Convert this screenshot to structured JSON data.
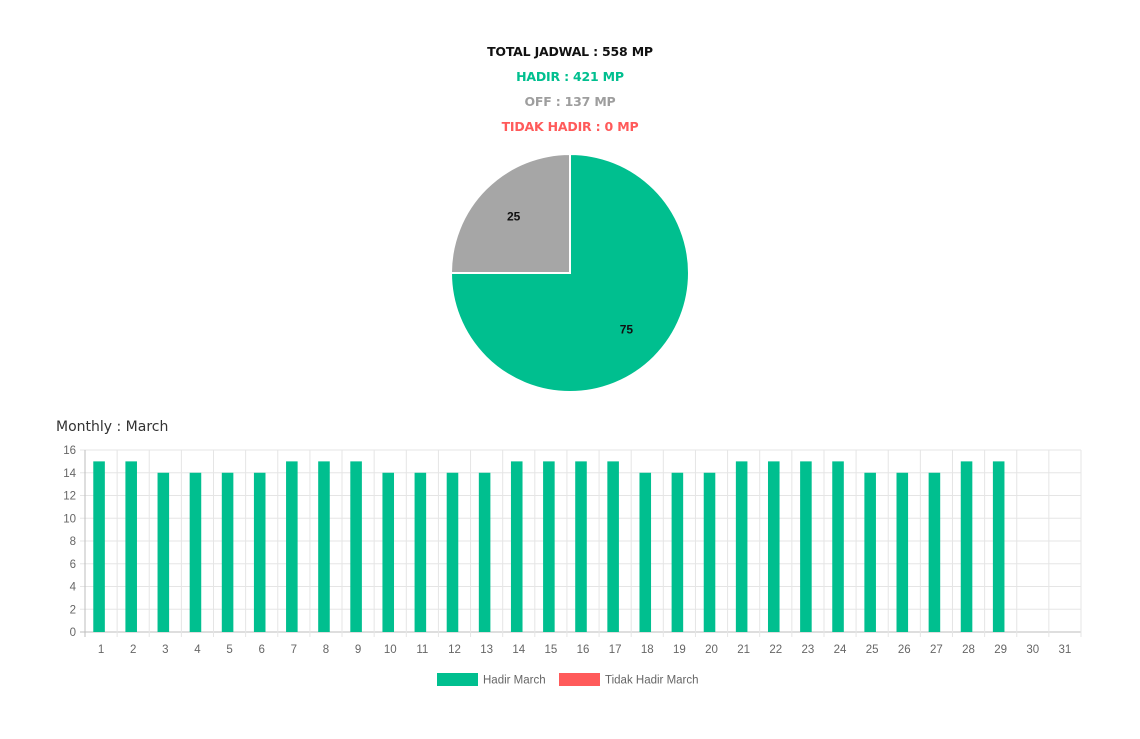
{
  "summary": {
    "total": "TOTAL JADWAL : 558 MP",
    "hadir": "HADIR : 421 MP",
    "off": "OFF : 137 MP",
    "tidak_hadir": "TIDAK HADIR : 0 MP"
  },
  "colors": {
    "hadir": "#00bf8f",
    "off": "#a6a6a6",
    "tidak_hadir": "#ff5a5a",
    "grid": "#e5e5e5",
    "axis_text": "#666666"
  },
  "chart_data": [
    {
      "type": "pie",
      "title": "",
      "slices": [
        {
          "label": "",
          "value": 75,
          "color": "#00bf8f",
          "data_label": "75"
        },
        {
          "label": "",
          "value": 25,
          "color": "#a6a6a6",
          "data_label": "25"
        }
      ]
    },
    {
      "type": "bar",
      "title": "Monthly : March",
      "xlabel": "",
      "ylabel": "",
      "ylim": [
        0,
        16
      ],
      "y_ticks": [
        0,
        2,
        4,
        6,
        8,
        10,
        12,
        14,
        16
      ],
      "grid": true,
      "legend_position": "bottom",
      "categories": [
        "1",
        "2",
        "3",
        "4",
        "5",
        "6",
        "7",
        "8",
        "9",
        "10",
        "11",
        "12",
        "13",
        "14",
        "15",
        "16",
        "17",
        "18",
        "19",
        "20",
        "21",
        "22",
        "23",
        "24",
        "25",
        "26",
        "27",
        "28",
        "29",
        "30",
        "31"
      ],
      "series": [
        {
          "name": "Hadir March",
          "color": "#00bf8f",
          "values": [
            15,
            15,
            14,
            14,
            14,
            14,
            15,
            15,
            15,
            14,
            14,
            14,
            14,
            15,
            15,
            15,
            15,
            14,
            14,
            14,
            15,
            15,
            15,
            15,
            14,
            14,
            14,
            15,
            15,
            null,
            null
          ]
        },
        {
          "name": "Tidak Hadir March",
          "color": "#ff5a5a",
          "values": [
            0,
            0,
            0,
            0,
            0,
            0,
            0,
            0,
            0,
            0,
            0,
            0,
            0,
            0,
            0,
            0,
            0,
            0,
            0,
            0,
            0,
            0,
            0,
            0,
            0,
            0,
            0,
            0,
            0,
            null,
            null
          ]
        }
      ]
    }
  ]
}
